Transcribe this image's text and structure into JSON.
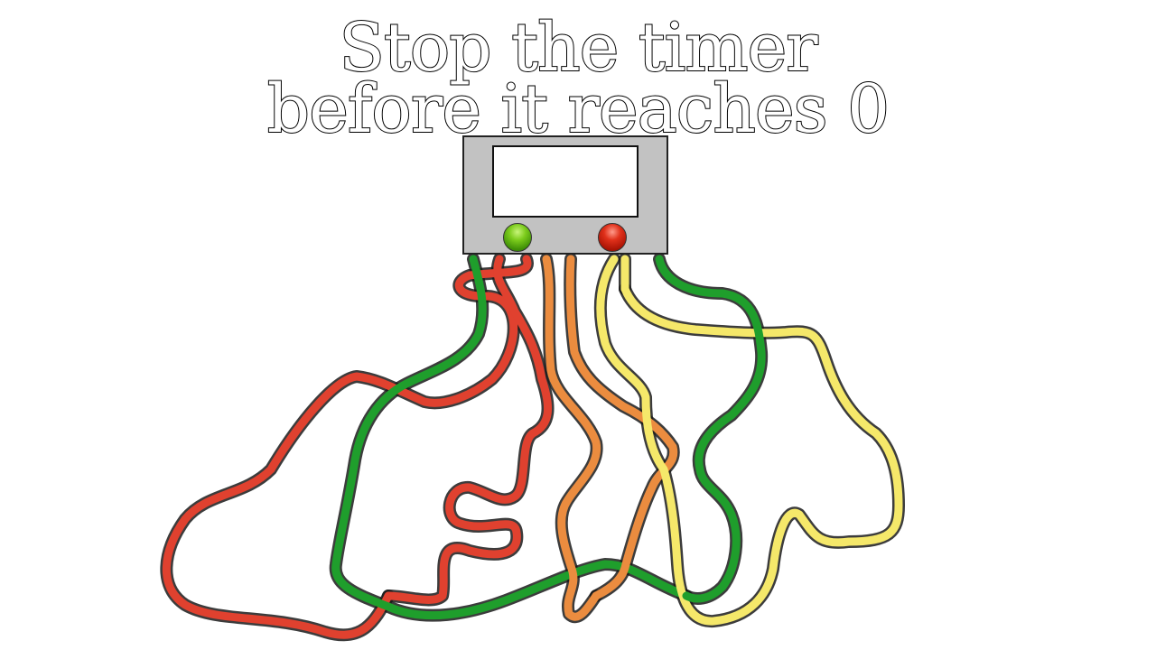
{
  "title": {
    "line1": "Stop the timer",
    "line2": "before it reaches 0"
  },
  "timer": {
    "display": ""
  },
  "buttons": {
    "green": {
      "icon": "green-light-button",
      "color": "#5cb30f"
    },
    "red": {
      "icon": "red-light-button",
      "color": "#d0200f"
    }
  },
  "wires": [
    {
      "name": "red-wire-left",
      "color": "#e0412f"
    },
    {
      "name": "red-wire-center",
      "color": "#e0412f"
    },
    {
      "name": "green-wire-left",
      "color": "#1f9e2c"
    },
    {
      "name": "orange-wire-1",
      "color": "#eb8c3f"
    },
    {
      "name": "orange-wire-2",
      "color": "#eb8c3f"
    },
    {
      "name": "yellow-wire-1",
      "color": "#f5e86a"
    },
    {
      "name": "yellow-wire-2",
      "color": "#f5e86a"
    },
    {
      "name": "green-wire-right",
      "color": "#1f9e2c"
    }
  ]
}
